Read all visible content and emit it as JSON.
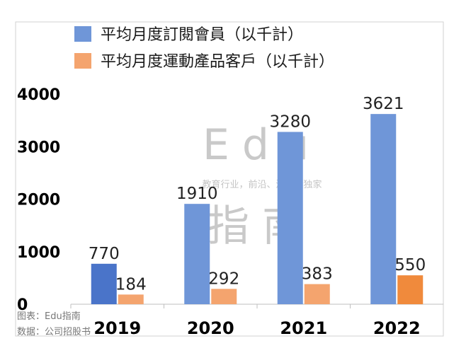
{
  "chart_data": {
    "type": "bar",
    "categories": [
      "2019",
      "2020",
      "2021",
      "2022"
    ],
    "series": [
      {
        "name": "平均月度訂閱會員（以千計）",
        "values": [
          770,
          1910,
          3280,
          3621
        ],
        "color": "#6f96d8"
      },
      {
        "name": "平均月度運動產品客戶（以千計）",
        "values": [
          184,
          292,
          383,
          550
        ],
        "color": "#f4a46e"
      }
    ],
    "highlight": {
      "2019": {
        "series": 0,
        "color": "#4a74c9"
      },
      "2022": {
        "series": 1,
        "color": "#f08a3c"
      }
    },
    "ylim": [
      0,
      4000
    ],
    "yticks": [
      0,
      1000,
      2000,
      3000,
      4000
    ],
    "grid": false,
    "legend": "top",
    "title": "",
    "xlabel": "",
    "ylabel": ""
  },
  "watermark": {
    "brand_latin": "Edu",
    "brand_cjk": "指南",
    "tagline": "教育行业，前沿、深度、独家"
  },
  "credits": {
    "chart": "图表：Edu指南",
    "source": "数据：公司招股书"
  }
}
